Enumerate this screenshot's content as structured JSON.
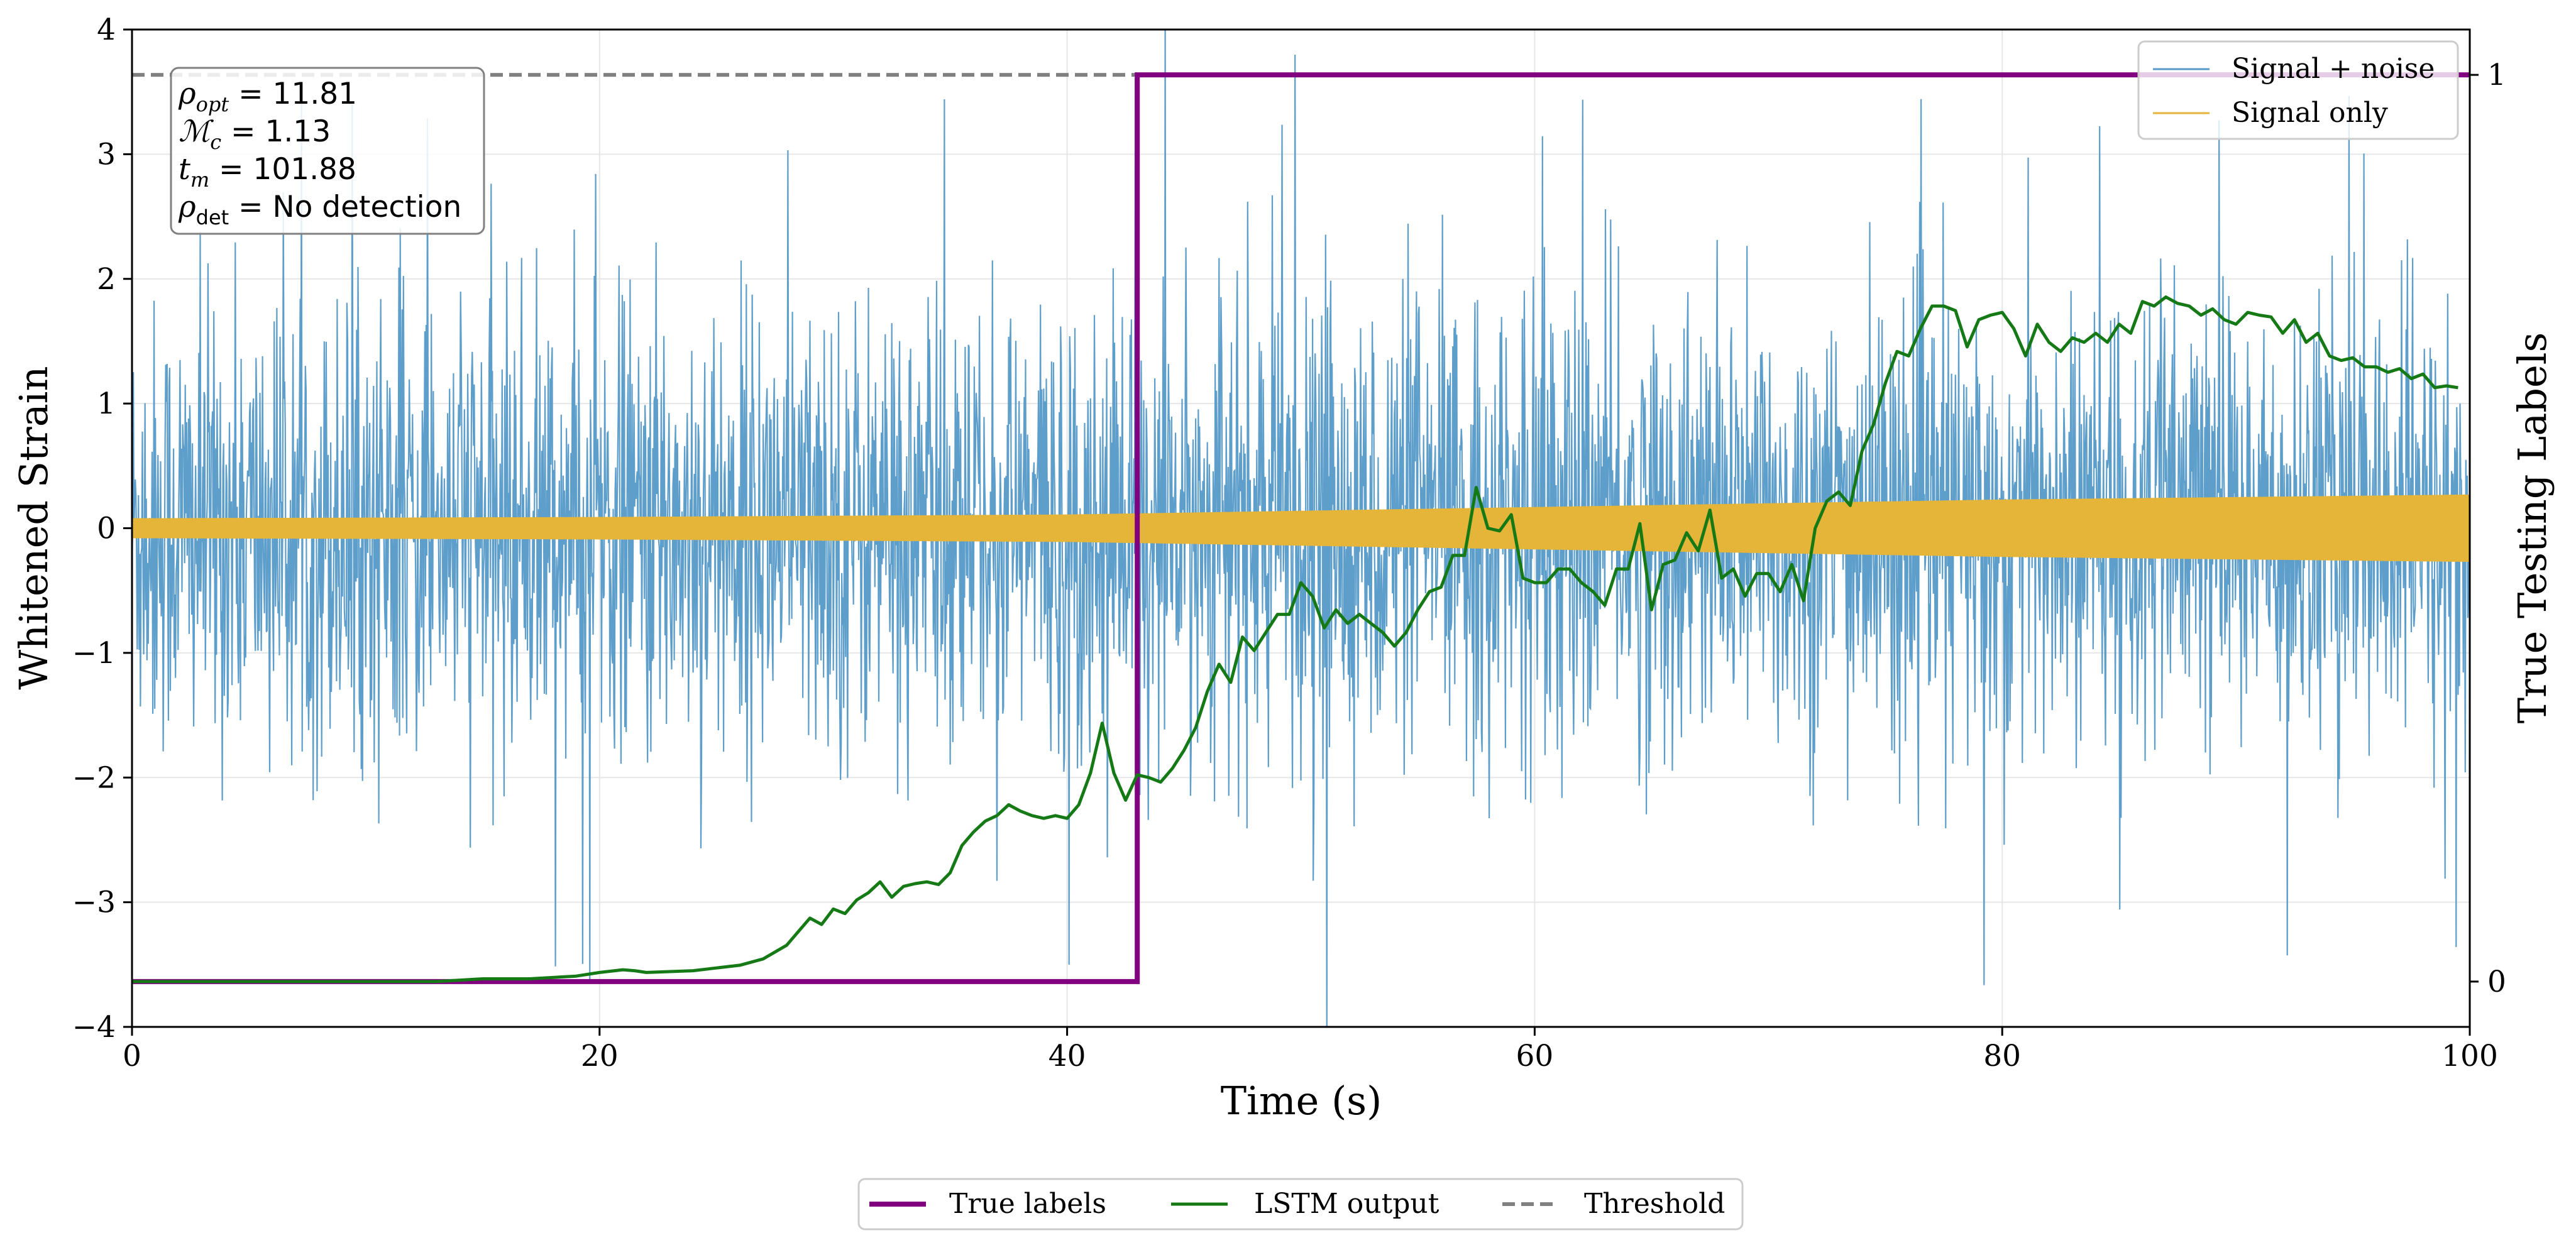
{
  "chart_data": {
    "type": "line",
    "xlabel": "Time (s)",
    "ylabel": "Whitened Strain",
    "ylabel_right": "True Testing Labels",
    "xlim": [
      0,
      100
    ],
    "ylim": [
      -4,
      4
    ],
    "ylim_right": [
      -0.05,
      1.05
    ],
    "x_ticks": [
      {
        "value": 0,
        "label": "0"
      },
      {
        "value": 20,
        "label": "20"
      },
      {
        "value": 40,
        "label": "40"
      },
      {
        "value": 60,
        "label": "60"
      },
      {
        "value": 80,
        "label": "80"
      },
      {
        "value": 100,
        "label": "100"
      }
    ],
    "y_ticks": [
      {
        "value": -4,
        "label": "−4"
      },
      {
        "value": -3,
        "label": "−3"
      },
      {
        "value": -2,
        "label": "−2"
      },
      {
        "value": -1,
        "label": "−1"
      },
      {
        "value": 0,
        "label": "0"
      },
      {
        "value": 1,
        "label": "1"
      },
      {
        "value": 2,
        "label": "2"
      },
      {
        "value": 3,
        "label": "3"
      },
      {
        "value": 4,
        "label": "4"
      }
    ],
    "y_ticks_right": [
      {
        "value": 0,
        "label": "0"
      },
      {
        "value": 1,
        "label": "1"
      }
    ],
    "grid": true,
    "info_box": {
      "rho_opt": "11.81",
      "mc": "1.13",
      "tm": "101.88",
      "rho_det": "No detection"
    },
    "legend_upper": [
      {
        "name": "Signal + noise",
        "color": "#5599c8"
      },
      {
        "name": "Signal only",
        "color": "#e5b53a"
      }
    ],
    "legend_lower": [
      {
        "name": "True labels",
        "color": "#800080",
        "style": "solid"
      },
      {
        "name": "LSTM output",
        "color": "#157a15",
        "style": "solid"
      },
      {
        "name": "Threshold",
        "color": "#808080",
        "style": "dashed"
      }
    ],
    "series": [
      {
        "name": "Signal + noise",
        "axis": "left",
        "color": "#5599c8",
        "description": "dense noisy whitened strain, approx. std 0.9, extremes near ±4"
      },
      {
        "name": "Signal only",
        "axis": "left",
        "color": "#e5b53a",
        "envelope": [
          {
            "x": 0,
            "amp": 0.08
          },
          {
            "x": 20,
            "amp": 0.09
          },
          {
            "x": 40,
            "amp": 0.11
          },
          {
            "x": 50,
            "amp": 0.14
          },
          {
            "x": 60,
            "amp": 0.17
          },
          {
            "x": 70,
            "amp": 0.2
          },
          {
            "x": 80,
            "amp": 0.23
          },
          {
            "x": 90,
            "amp": 0.25
          },
          {
            "x": 100,
            "amp": 0.27
          }
        ]
      },
      {
        "name": "True labels",
        "axis": "right",
        "color": "#800080",
        "x": [
          0,
          43,
          43,
          100
        ],
        "y": [
          0,
          0,
          1,
          1
        ]
      },
      {
        "name": "Threshold",
        "axis": "right",
        "color": "#808080",
        "y": 1.0
      },
      {
        "name": "LSTM output",
        "axis": "right",
        "color": "#157a15",
        "x": [
          0,
          5,
          10,
          13,
          15,
          17,
          19,
          20,
          21,
          21.5,
          22,
          23,
          24,
          25,
          26,
          27,
          28,
          28.5,
          29,
          29.5,
          30,
          30.5,
          31,
          31.5,
          32,
          32.5,
          33,
          33.5,
          34,
          34.5,
          35,
          35.5,
          36,
          36.5,
          37,
          37.5,
          38,
          38.5,
          39,
          39.5,
          40,
          40.5,
          41,
          41.5,
          42,
          42.5,
          43,
          43.5,
          44,
          44.5,
          45,
          45.5,
          46,
          46.5,
          47,
          47.5,
          48,
          48.5,
          49,
          49.5,
          50,
          50.5,
          51,
          51.5,
          52,
          52.5,
          53,
          53.5,
          54,
          54.5,
          55,
          55.5,
          56,
          56.5,
          57,
          57.5,
          58,
          58.5,
          59,
          59.5,
          60,
          60.5,
          61,
          61.5,
          62,
          62.5,
          63,
          63.5,
          64,
          64.5,
          65,
          65.5,
          66,
          66.5,
          67,
          67.5,
          68,
          68.5,
          69,
          69.5,
          70,
          70.5,
          71,
          71.5,
          72,
          72.5,
          73,
          73.5,
          74,
          74.5,
          75,
          75.5,
          76,
          76.5,
          77,
          77.5,
          78,
          78.5,
          79,
          79.5,
          80,
          80.5,
          81,
          81.5,
          82,
          82.5,
          83,
          83.5,
          84,
          84.5,
          85,
          85.5,
          86,
          86.5,
          87,
          87.5,
          88,
          88.5,
          89,
          89.5,
          90,
          90.5,
          91,
          91.5,
          92,
          92.5,
          93,
          93.5,
          94,
          94.5,
          95,
          95.5,
          96,
          96.5,
          97,
          97.5,
          98,
          98.5,
          99,
          99.5
        ],
        "y": [
          0.0,
          0.0,
          0.0,
          0.0,
          0.003,
          0.003,
          0.006,
          0.01,
          0.013,
          0.012,
          0.01,
          0.011,
          0.012,
          0.015,
          0.018,
          0.025,
          0.04,
          0.055,
          0.07,
          0.063,
          0.08,
          0.075,
          0.09,
          0.098,
          0.11,
          0.093,
          0.105,
          0.108,
          0.11,
          0.107,
          0.12,
          0.15,
          0.165,
          0.177,
          0.183,
          0.195,
          0.188,
          0.183,
          0.18,
          0.183,
          0.18,
          0.195,
          0.23,
          0.285,
          0.23,
          0.2,
          0.228,
          0.225,
          0.22,
          0.235,
          0.255,
          0.28,
          0.32,
          0.35,
          0.33,
          0.38,
          0.365,
          0.385,
          0.405,
          0.405,
          0.44,
          0.425,
          0.39,
          0.41,
          0.395,
          0.405,
          0.395,
          0.385,
          0.37,
          0.385,
          0.41,
          0.43,
          0.435,
          0.47,
          0.47,
          0.545,
          0.5,
          0.497,
          0.515,
          0.445,
          0.44,
          0.44,
          0.455,
          0.455,
          0.44,
          0.43,
          0.415,
          0.455,
          0.455,
          0.505,
          0.41,
          0.46,
          0.465,
          0.495,
          0.475,
          0.52,
          0.445,
          0.455,
          0.425,
          0.45,
          0.45,
          0.43,
          0.46,
          0.42,
          0.5,
          0.53,
          0.54,
          0.525,
          0.585,
          0.615,
          0.66,
          0.695,
          0.69,
          0.72,
          0.745,
          0.745,
          0.74,
          0.7,
          0.73,
          0.735,
          0.738,
          0.72,
          0.69,
          0.725,
          0.705,
          0.695,
          0.71,
          0.705,
          0.715,
          0.705,
          0.725,
          0.715,
          0.75,
          0.745,
          0.755,
          0.748,
          0.745,
          0.735,
          0.742,
          0.73,
          0.725,
          0.738,
          0.735,
          0.733,
          0.715,
          0.73,
          0.705,
          0.715,
          0.69,
          0.685,
          0.688,
          0.678,
          0.678,
          0.672,
          0.676,
          0.665,
          0.67,
          0.655,
          0.657,
          0.655
        ]
      }
    ]
  }
}
